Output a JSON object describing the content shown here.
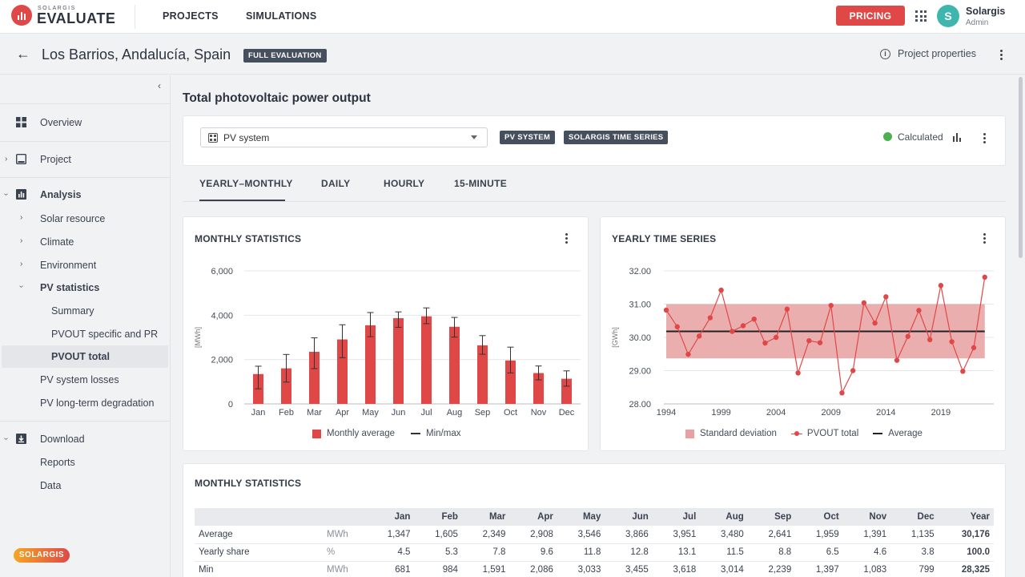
{
  "app": {
    "logo_small": "SOLARGIS",
    "logo_big": "EVALUATE"
  },
  "topnav": {
    "projects": "PROJECTS",
    "simulations": "SIMULATIONS"
  },
  "pricing_label": "PRICING",
  "user": {
    "initial": "S",
    "name": "Solargis",
    "role": "Admin"
  },
  "header": {
    "title": "Los Barrios, Andalucía, Spain",
    "badge": "FULL EVALUATION",
    "project_properties": "Project properties"
  },
  "sidebar": {
    "overview": "Overview",
    "project": "Project",
    "analysis": "Analysis",
    "solar_resource": "Solar resource",
    "climate": "Climate",
    "environment": "Environment",
    "pv_statistics": "PV statistics",
    "summary": "Summary",
    "pvout_specific": "PVOUT specific and PR",
    "pvout_total": "PVOUT total",
    "pv_system_losses": "PV system losses",
    "pv_degradation": "PV long-term degradation",
    "download": "Download",
    "reports": "Reports",
    "data": "Data",
    "footer_logo": "SOLARGIS"
  },
  "main": {
    "title": "Total photovoltaic power output",
    "selector_value": "PV system",
    "badge_pv": "PV SYSTEM",
    "badge_ts": "SOLARGIS TIME SERIES",
    "status": "Calculated",
    "tabs": [
      "YEARLY–MONTHLY",
      "DAILY",
      "HOURLY",
      "15-MINUTE"
    ]
  },
  "colors": {
    "accent": "#e04848",
    "band": "#e8a0a0",
    "average_line": "#222222",
    "status_ok": "#4caf50"
  },
  "monthly_chart_title": "MONTHLY STATISTICS",
  "yearly_chart_title": "YEARLY TIME SERIES",
  "chart_data": [
    {
      "type": "bar",
      "title": "MONTHLY STATISTICS",
      "ylabel": "[MWh]",
      "ylim": [
        0,
        6000
      ],
      "yticks": [
        "0",
        "2,000",
        "4,000",
        "6,000"
      ],
      "categories": [
        "Jan",
        "Feb",
        "Mar",
        "Apr",
        "May",
        "Jun",
        "Jul",
        "Aug",
        "Sep",
        "Oct",
        "Nov",
        "Dec"
      ],
      "series": [
        {
          "name": "Monthly average",
          "values": [
            1347,
            1605,
            2349,
            2908,
            3546,
            3866,
            3951,
            3480,
            2641,
            1959,
            1391,
            1135
          ]
        }
      ],
      "min": [
        681,
        984,
        1591,
        2086,
        3033,
        3455,
        3618,
        3014,
        2239,
        1397,
        1083,
        799
      ],
      "max": [
        1700,
        2230,
        2980,
        3570,
        4120,
        4150,
        4330,
        3900,
        3080,
        2560,
        1710,
        1490
      ],
      "legend": [
        "Monthly average",
        "Min/max"
      ],
      "legend_position": "bottom"
    },
    {
      "type": "line",
      "title": "YEARLY TIME SERIES",
      "ylabel": "[GWh]",
      "ylim": [
        28,
        32
      ],
      "yticks": [
        "28.00",
        "29.00",
        "30.00",
        "31.00",
        "32.00"
      ],
      "xticks": [
        "1994",
        "1999",
        "2004",
        "2009",
        "2014",
        "2019"
      ],
      "x": [
        1994,
        1995,
        1996,
        1997,
        1998,
        1999,
        2000,
        2001,
        2002,
        2003,
        2004,
        2005,
        2006,
        2007,
        2008,
        2009,
        2010,
        2011,
        2012,
        2013,
        2014,
        2015,
        2016,
        2017,
        2018,
        2019,
        2020,
        2021,
        2022,
        2023
      ],
      "series": [
        {
          "name": "PVOUT total",
          "values": [
            30.82,
            30.32,
            29.49,
            30.04,
            30.59,
            31.42,
            30.18,
            30.35,
            30.55,
            29.83,
            30.0,
            30.85,
            28.93,
            29.9,
            29.84,
            30.96,
            28.33,
            29.0,
            31.04,
            30.43,
            31.22,
            29.31,
            30.03,
            30.81,
            29.93,
            31.56,
            29.87,
            28.98,
            29.69,
            31.81
          ]
        }
      ],
      "average": 30.18,
      "std_band": [
        29.37,
        31.0
      ],
      "legend": [
        "Standard deviation",
        "PVOUT total",
        "Average"
      ],
      "legend_position": "bottom"
    }
  ],
  "table": {
    "title": "MONTHLY STATISTICS",
    "headers": [
      "",
      "",
      "Jan",
      "Feb",
      "Mar",
      "Apr",
      "May",
      "Jun",
      "Jul",
      "Aug",
      "Sep",
      "Oct",
      "Nov",
      "Dec",
      "Year"
    ],
    "rows": [
      [
        "Average",
        "MWh",
        "1,347",
        "1,605",
        "2,349",
        "2,908",
        "3,546",
        "3,866",
        "3,951",
        "3,480",
        "2,641",
        "1,959",
        "1,391",
        "1,135",
        "30,176"
      ],
      [
        "Yearly share",
        "%",
        "4.5",
        "5.3",
        "7.8",
        "9.6",
        "11.8",
        "12.8",
        "13.1",
        "11.5",
        "8.8",
        "6.5",
        "4.6",
        "3.8",
        "100.0"
      ],
      [
        "Min",
        "MWh",
        "681",
        "984",
        "1,591",
        "2,086",
        "3,033",
        "3,455",
        "3,618",
        "3,014",
        "2,239",
        "1,397",
        "1,083",
        "799",
        "28,325"
      ]
    ]
  }
}
